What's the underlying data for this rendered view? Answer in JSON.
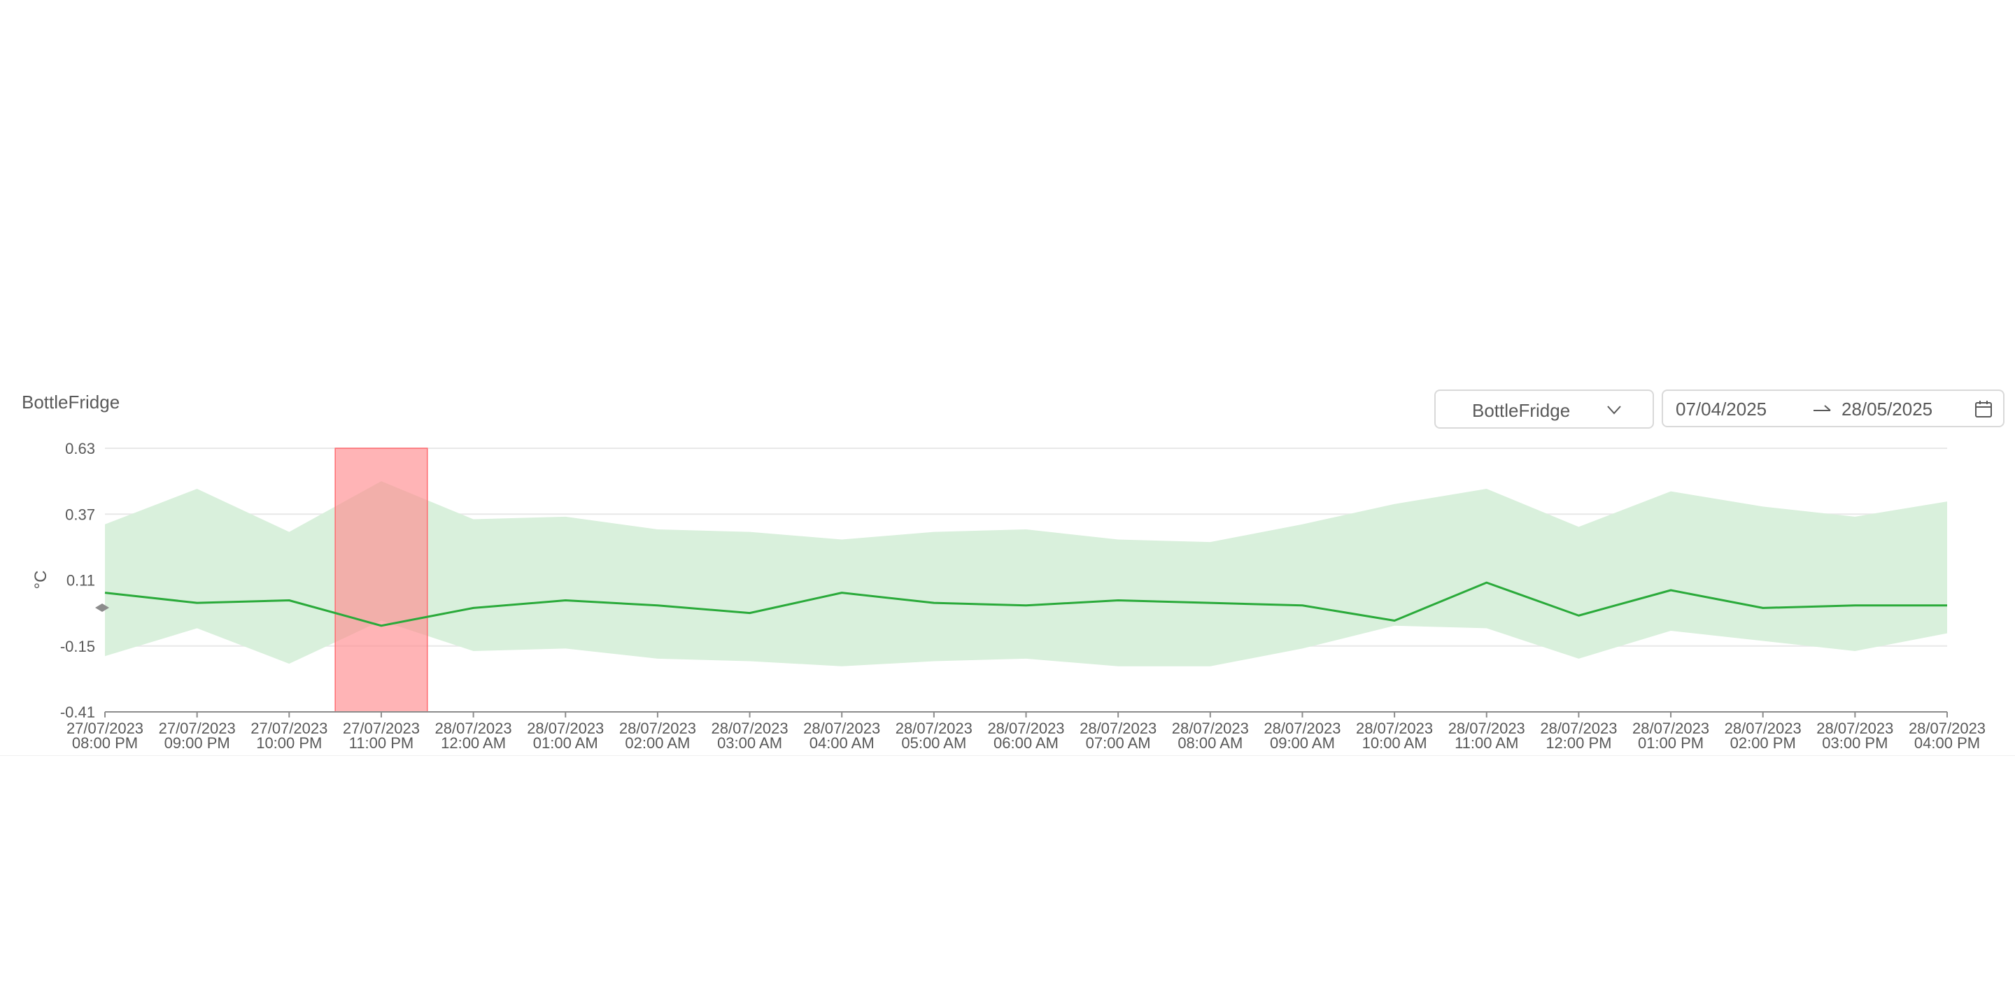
{
  "header": {
    "title": "BottleFridge",
    "device_select": {
      "value": "BottleFridge",
      "icon": "chevron-down-icon"
    },
    "date_range": {
      "start": "07/04/2025",
      "end": "28/05/2025",
      "separator_icon": "arrow-right-icon",
      "calendar_icon": "calendar-icon"
    }
  },
  "chart_data": {
    "type": "line",
    "title": "BottleFridge",
    "ylabel": "°C",
    "xlabel": "",
    "ylim": [
      -0.41,
      0.63
    ],
    "yticks": [
      "0.63",
      "0.37",
      "0.11",
      "-0.15",
      "-0.41"
    ],
    "grid": true,
    "x": [
      "27/07/2023 08:00 PM",
      "27/07/2023 09:00 PM",
      "27/07/2023 10:00 PM",
      "27/07/2023 11:00 PM",
      "28/07/2023 12:00 AM",
      "28/07/2023 01:00 AM",
      "28/07/2023 02:00 AM",
      "28/07/2023 03:00 AM",
      "28/07/2023 04:00 AM",
      "28/07/2023 05:00 AM",
      "28/07/2023 06:00 AM",
      "28/07/2023 07:00 AM",
      "28/07/2023 08:00 AM",
      "28/07/2023 09:00 AM",
      "28/07/2023 10:00 AM",
      "28/07/2023 11:00 AM",
      "28/07/2023 12:00 PM",
      "28/07/2023 01:00 PM",
      "28/07/2023 02:00 PM",
      "28/07/2023 03:00 PM",
      "28/07/2023 04:00 PM"
    ],
    "series": [
      {
        "color": "#2aaa3a",
        "values": [
          0.06,
          0.02,
          0.03,
          -0.07,
          0.0,
          0.03,
          0.01,
          -0.02,
          0.06,
          0.02,
          0.01,
          0.03,
          0.02,
          0.01,
          -0.05,
          0.1,
          -0.03,
          0.07,
          0.0,
          0.01,
          0.01
        ]
      }
    ],
    "band": {
      "color": "#d9f0dc",
      "upper": [
        0.33,
        0.47,
        0.3,
        0.5,
        0.35,
        0.36,
        0.31,
        0.3,
        0.27,
        0.3,
        0.31,
        0.27,
        0.26,
        0.33,
        0.41,
        0.47,
        0.32,
        0.46,
        0.4,
        0.36,
        0.42
      ],
      "lower": [
        -0.19,
        -0.08,
        -0.22,
        -0.05,
        -0.17,
        -0.16,
        -0.2,
        -0.21,
        -0.23,
        -0.21,
        -0.2,
        -0.23,
        -0.23,
        -0.16,
        -0.07,
        -0.08,
        -0.2,
        -0.09,
        -0.13,
        -0.17,
        -0.1
      ]
    },
    "alert_region": {
      "x": "27/07/2023 11:00 PM",
      "color": "#ff8c8f"
    }
  }
}
